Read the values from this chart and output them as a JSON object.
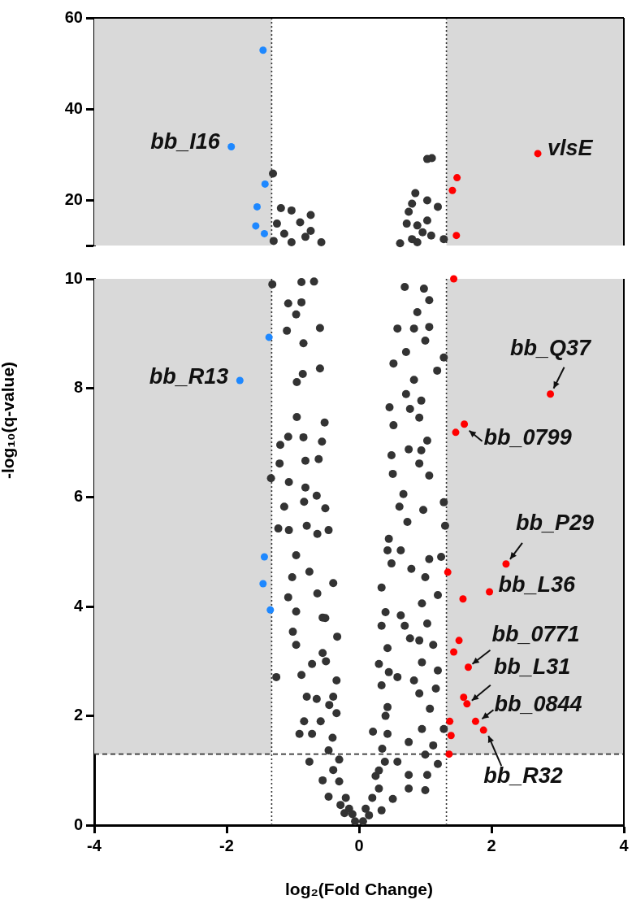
{
  "chart_data": [
    {
      "type": "scatter",
      "xlim": [
        -4,
        4
      ],
      "ylim": [
        10,
        60
      ],
      "yticks": [
        {
          "value": 10,
          "label": null
        },
        20,
        40,
        60
      ],
      "tick_labels": "y",
      "legend": false,
      "marker": "circle",
      "bands": [
        {
          "axis": "x",
          "from": -4,
          "to": -1.32,
          "color": "#d9d9d9"
        },
        {
          "axis": "x",
          "from": 1.32,
          "to": 4,
          "color": "#d9d9d9"
        }
      ],
      "ref_lines": [
        {
          "axis": "x",
          "value": -1.32,
          "color": "#333333",
          "line_style": "dotted"
        },
        {
          "axis": "x",
          "value": 1.32,
          "color": "#333333",
          "line_style": "dotted"
        }
      ],
      "annotations": [
        {
          "text": "bb_I16",
          "x": -1.93,
          "y": 31.7
        },
        {
          "text": "vlsE",
          "x": 2.7,
          "y": 30.2
        }
      ],
      "series": [
        {
          "color": "#333333",
          "x": [
            -1.3,
            -1.18,
            -1.02,
            -0.73,
            -1.24,
            -0.89,
            -0.73,
            -1.29,
            -1.02,
            -0.57,
            -1.13,
            -0.81,
            1.03,
            1.1,
            0.85,
            1.03,
            1.19,
            0.8,
            0.75,
            0.72,
            1.03,
            0.88,
            0.96,
            1.09,
            0.62,
            0.88,
            1.28,
            0.8
          ],
          "values": [
            25.8,
            18.2,
            17.7,
            16.7,
            14.8,
            15.1,
            13.2,
            11,
            10.7,
            10.7,
            12.6,
            11.9,
            29,
            29.2,
            21.5,
            19.9,
            18.5,
            19.2,
            17.4,
            14.8,
            15.5,
            14.4,
            12.9,
            12.2,
            10.5,
            10.7,
            11.4,
            11.4
          ]
        },
        {
          "color": "#1e88ff",
          "x": [
            -1.45,
            -1.93,
            -1.42,
            -1.54,
            -1.56,
            -1.43
          ],
          "values": [
            52.9,
            31.7,
            23.5,
            18.5,
            14.3,
            12.6
          ]
        },
        {
          "color": "#ff0000",
          "x": [
            2.7,
            1.48,
            1.41,
            1.47
          ],
          "values": [
            30.2,
            24.9,
            22.1,
            12.2
          ]
        }
      ]
    },
    {
      "type": "scatter",
      "xlabel": "log₂(Fold Change)",
      "ylabel": "-log₁₀(q-value)",
      "xlim": [
        -4,
        4
      ],
      "xticks": [
        -4,
        -2,
        0,
        2,
        4
      ],
      "ylim": [
        0,
        10
      ],
      "yticks": [
        0,
        2,
        4,
        6,
        8,
        10
      ],
      "legend": false,
      "marker": "circle",
      "bands": [
        {
          "axis": "x",
          "from": -4,
          "to": -1.32,
          "color": "#d9d9d9"
        },
        {
          "axis": "x",
          "from": 1.32,
          "to": 4,
          "color": "#d9d9d9"
        }
      ],
      "ref_lines": [
        {
          "axis": "x",
          "value": -1.32,
          "color": "#333333",
          "line_style": "dotted"
        },
        {
          "axis": "x",
          "value": 1.32,
          "color": "#333333",
          "line_style": "dotted"
        },
        {
          "axis": "y",
          "value": 1.3,
          "color": "#333333",
          "line_style": "dashed"
        }
      ],
      "annotations": [
        {
          "text": "bb_R13",
          "x": -1.8,
          "y": 8.14
        },
        {
          "text": "bb_Q37",
          "x": 2.89,
          "y": 7.89
        },
        {
          "text": "bb_0799",
          "x": 1.59,
          "y": 7.34
        },
        {
          "text": "bb_P29",
          "x": 2.22,
          "y": 4.78
        },
        {
          "text": "bb_L36",
          "x": 1.97,
          "y": 4.27
        },
        {
          "text": "bb_0771",
          "x": 1.65,
          "y": 2.89
        },
        {
          "text": "bb_L31",
          "x": 1.63,
          "y": 2.22
        },
        {
          "text": "bb_0844",
          "x": 1.76,
          "y": 1.9
        },
        {
          "text": "bb_R32",
          "x": 1.88,
          "y": 1.74
        }
      ],
      "series": [
        {
          "color": "#333333",
          "x": [
            -0.87,
            -0.68,
            -1.31,
            -1.07,
            -0.95,
            -0.87,
            -1.09,
            -0.59,
            -0.84,
            -0.59,
            -0.94,
            -0.85,
            -0.94,
            -0.52,
            -1.07,
            -1.19,
            -0.84,
            -0.56,
            -1.2,
            -0.81,
            -0.61,
            -1.33,
            -1.06,
            -0.81,
            -0.64,
            -1.13,
            -0.83,
            -0.51,
            -1.22,
            -1.06,
            -0.79,
            -0.63,
            -0.46,
            0.69,
            0.98,
            1.06,
            0.88,
            0.58,
            0.83,
            1.06,
            1,
            0.71,
            1.28,
            0.52,
            1.18,
            0.83,
            0.71,
            0.94,
            0.46,
            0.77,
            0.52,
            0.91,
            1.03,
            0.75,
            0.49,
            0.94,
            0.51,
            0.91,
            1.06,
            1.28,
            0.67,
            0.61,
            0.97,
            0.73,
            1.3,
            0.45,
            -0.95,
            -1.01,
            -0.75,
            -1.07,
            -0.63,
            -0.39,
            -0.95,
            -0.51,
            -1,
            -0.33,
            -0.95,
            -0.71,
            -1.25,
            -0.87,
            -0.34,
            -0.79,
            -0.64,
            -0.83,
            -0.9,
            -0.58,
            -0.71,
            -0.34,
            -0.75,
            -0.55,
            -0.46,
            -0.28,
            -0.22,
            -0.39,
            -0.46,
            -0.39,
            -0.55,
            -0.06,
            -0.1,
            0.43,
            0.63,
            1.06,
            1.24,
            0.49,
            0.79,
            1,
            0.34,
            1.19,
            0.95,
            0.63,
            0.34,
            0.69,
            1.03,
            0.77,
            0.91,
            1.12,
            0.3,
            0.95,
            1.19,
            0.83,
            0.58,
            1.16,
            0.91,
            1.07,
            0.43,
            0.21,
            0.95,
            1.28,
            0.75,
            1.12,
            1,
            1.19,
            0.58,
            0.75,
            1.03,
            0.75,
            1,
            0.51,
            0.34,
            0.15,
            0.06,
            0.3,
            0.39,
            0.43,
            0.34,
            0.43,
            -0.2,
            -0.3,
            0.2,
            0.25,
            -0.15,
            0.1,
            -0.4,
            0.35,
            -0.45,
            0.4,
            -0.5,
            0.45,
            -0.55,
            0.4,
            -0.3,
            0.3
          ],
          "values": [
            9.94,
            9.95,
            9.9,
            9.55,
            9.35,
            9.57,
            9.05,
            9.1,
            8.82,
            8.36,
            8.11,
            8.26,
            7.47,
            7.37,
            7.11,
            6.96,
            7.1,
            7.02,
            6.62,
            6.67,
            6.7,
            6.35,
            6.28,
            6.18,
            6.03,
            5.83,
            5.92,
            5.8,
            5.43,
            5.4,
            5.48,
            5.33,
            5.4,
            9.85,
            9.82,
            9.61,
            9.39,
            9.09,
            9.09,
            9.12,
            8.87,
            8.66,
            8.56,
            8.45,
            8.32,
            8.15,
            7.89,
            7.77,
            7.65,
            7.62,
            7.32,
            7.46,
            7.04,
            6.88,
            6.77,
            6.86,
            6.43,
            6.62,
            6.4,
            5.91,
            6.06,
            5.83,
            5.77,
            5.55,
            5.48,
            5.24,
            4.94,
            4.54,
            4.64,
            4.17,
            4.24,
            4.43,
            3.91,
            3.79,
            3.54,
            3.45,
            3.3,
            2.95,
            2.71,
            2.75,
            2.65,
            2.35,
            2.31,
            1.9,
            1.67,
            1.9,
            1.67,
            2.05,
            1.16,
            0.82,
            0.52,
            0.37,
            0.22,
            1.01,
            1.37,
            2.35,
            3.15,
            0.07,
            0.2,
            5.03,
            5.03,
            4.87,
            4.91,
            4.79,
            4.69,
            4.54,
            4.35,
            4.21,
            4.06,
            3.84,
            3.65,
            3.65,
            3.69,
            3.42,
            3.38,
            3.3,
            2.95,
            2.98,
            2.83,
            2.65,
            2.71,
            2.5,
            2.41,
            2.13,
            2.16,
            1.71,
            1.76,
            1.76,
            1.52,
            1.46,
            1.29,
            1.12,
            1.16,
            0.92,
            0.92,
            0.67,
            0.64,
            0.48,
            0.27,
            0.18,
            0.07,
            0.67,
            1.16,
            1.67,
            2.56,
            3.24,
            0.5,
            0.8,
            0.5,
            0.9,
            0.3,
            0.3,
            1.6,
            1.4,
            2.2,
            2,
            3,
            2.8,
            3.8,
            3.9,
            1.2,
            1
          ]
        },
        {
          "color": "#1e88ff",
          "x": [
            -1.36,
            -1.8,
            -1.43,
            -1.45,
            -1.34
          ],
          "values": [
            8.93,
            8.14,
            4.91,
            4.42,
            3.94
          ]
        },
        {
          "color": "#ff0000",
          "x": [
            1.43,
            1.46,
            1.59,
            2.89,
            2.22,
            1.97,
            1.34,
            1.57,
            1.51,
            1.43,
            1.65,
            1.58,
            1.63,
            1.76,
            1.88,
            1.37,
            1.39,
            1.36
          ],
          "values": [
            10,
            7.19,
            7.34,
            7.89,
            4.78,
            4.27,
            4.63,
            4.14,
            3.38,
            3.17,
            2.89,
            2.34,
            2.22,
            1.9,
            1.74,
            1.9,
            1.64,
            1.3
          ]
        }
      ]
    }
  ]
}
